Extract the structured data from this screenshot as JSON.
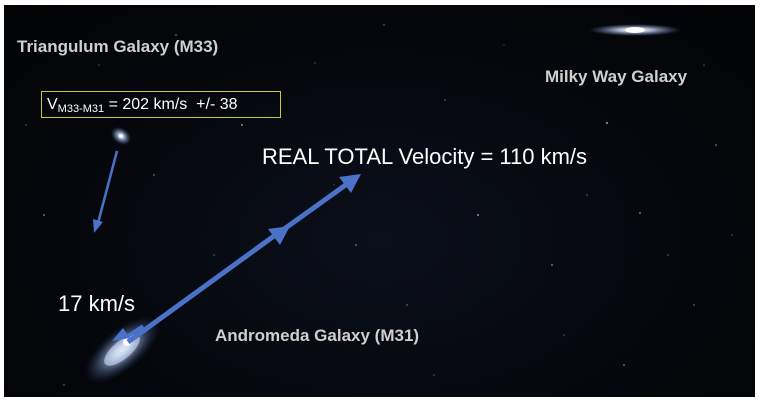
{
  "labels": {
    "m33": "Triangulum Galaxy (M33)",
    "milky_way": "Milky Way Galaxy",
    "andromeda": "Andromeda Galaxy (M31)"
  },
  "velocity_box": {
    "prefix": "V",
    "subscript": "M33-M31",
    "value": " = 202 km/s  +/- 38"
  },
  "total_velocity": "REAL TOTAL Velocity = 110 km/s",
  "m31_speed": "17 km/s",
  "colors": {
    "arrow": "#4a72c8",
    "box_border": "#c9c938",
    "galaxy_label": "#cfcfcf",
    "background": "#05070c"
  }
}
